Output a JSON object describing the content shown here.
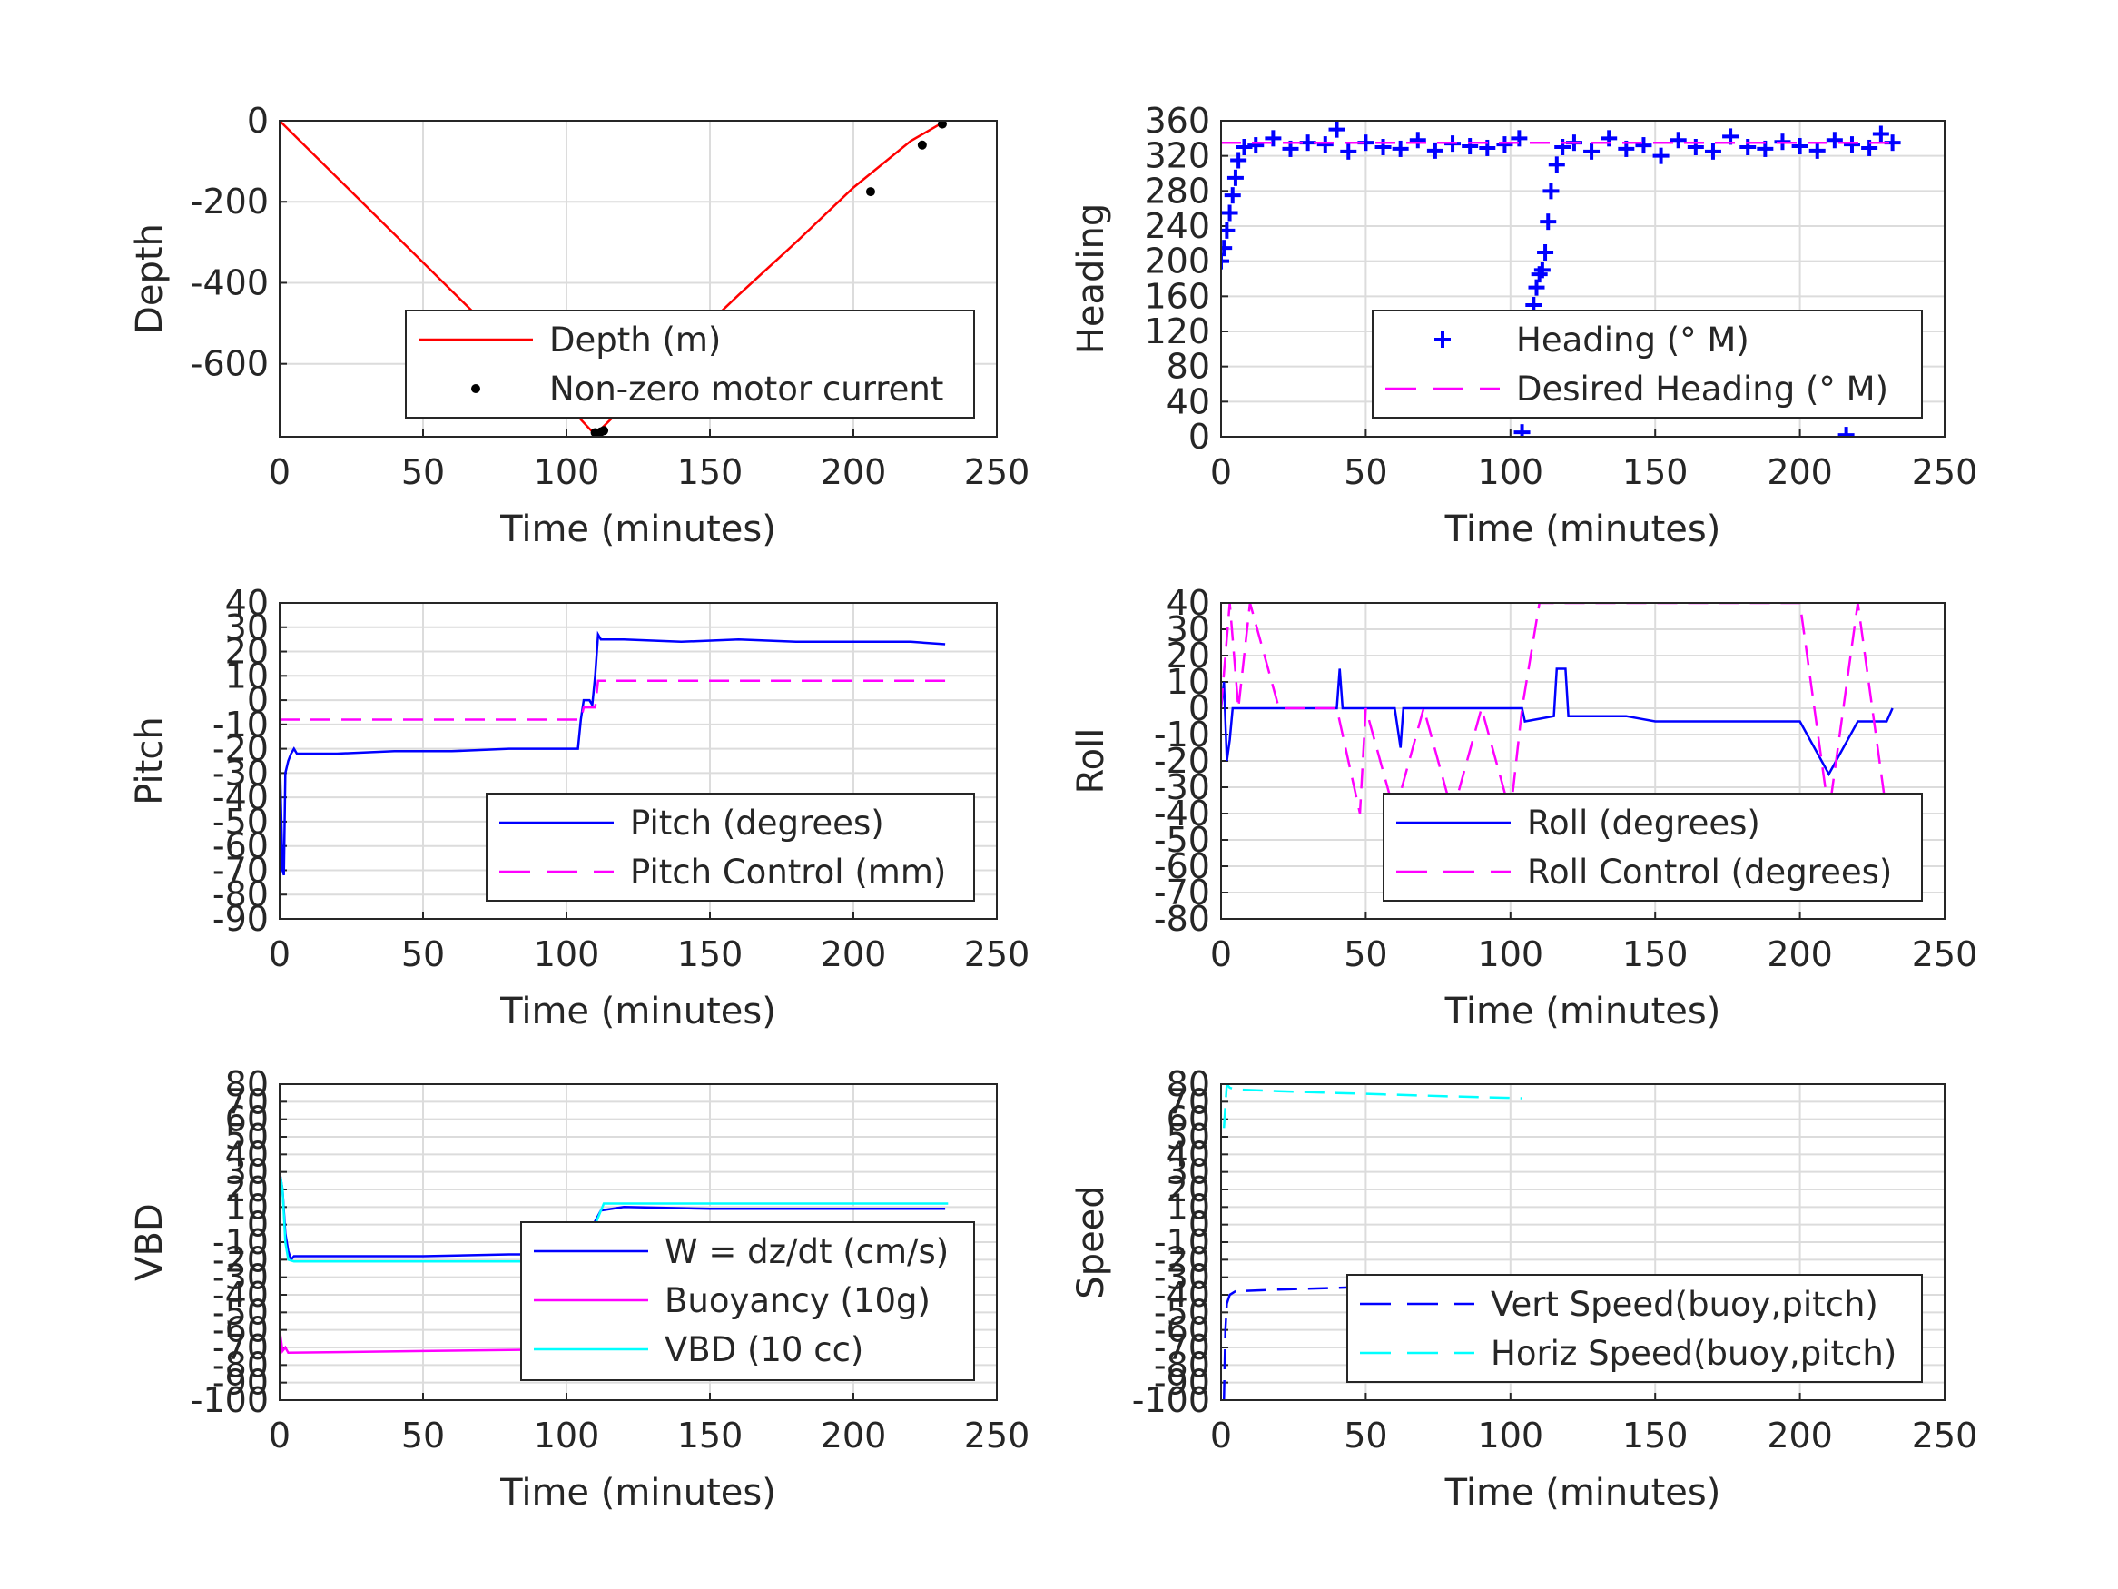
{
  "chart_data": [
    {
      "type": "line",
      "xlabel": "Time (minutes)",
      "ylabel": "Depth",
      "xlim": [
        0,
        250
      ],
      "xticks": [
        0,
        50,
        100,
        150,
        200,
        250
      ],
      "ylim": [
        -780,
        0
      ],
      "yticks": [
        -600,
        -400,
        -200,
        0
      ],
      "grid": true,
      "legend": "bottom-right",
      "series": [
        {
          "name": "Depth (m)",
          "color": "#ff0000",
          "style": "solid",
          "x": [
            0,
            20,
            40,
            60,
            80,
            100,
            110,
            120,
            140,
            160,
            180,
            200,
            220,
            231
          ],
          "y": [
            0,
            -140,
            -280,
            -420,
            -560,
            -700,
            -775,
            -705,
            -565,
            -430,
            -300,
            -165,
            -50,
            -5
          ]
        },
        {
          "name": "Non-zero motor current",
          "color": "#000000",
          "style": "dots",
          "x": [
            110,
            111,
            112,
            113,
            206,
            224,
            231
          ],
          "y": [
            -770,
            -772,
            -768,
            -765,
            -175,
            -60,
            -8
          ]
        }
      ]
    },
    {
      "type": "line",
      "xlabel": "Time (minutes)",
      "ylabel": "Heading",
      "xlim": [
        0,
        250
      ],
      "xticks": [
        0,
        50,
        100,
        150,
        200,
        250
      ],
      "ylim": [
        0,
        360
      ],
      "yticks": [
        0,
        40,
        80,
        120,
        160,
        200,
        240,
        280,
        320,
        360
      ],
      "grid": true,
      "legend": "bottom-right",
      "series": [
        {
          "name": "Heading (° M)",
          "color": "#0000ff",
          "style": "plus",
          "x": [
            0,
            1,
            2,
            3,
            4,
            5,
            6,
            8,
            12,
            18,
            24,
            30,
            36,
            40,
            44,
            50,
            56,
            62,
            68,
            74,
            80,
            86,
            92,
            98,
            103,
            104,
            105,
            106,
            107,
            108,
            109,
            110,
            111,
            112,
            113,
            114,
            116,
            118,
            122,
            128,
            134,
            140,
            146,
            152,
            158,
            164,
            170,
            176,
            182,
            188,
            194,
            200,
            206,
            212,
            218,
            224,
            228,
            232,
            216
          ],
          "y": [
            200,
            215,
            235,
            255,
            275,
            295,
            315,
            330,
            332,
            340,
            328,
            335,
            333,
            350,
            325,
            335,
            330,
            328,
            338,
            326,
            334,
            331,
            329,
            333,
            340,
            5,
            40,
            80,
            120,
            150,
            170,
            185,
            190,
            210,
            245,
            280,
            310,
            330,
            335,
            325,
            340,
            328,
            332,
            320,
            338,
            330,
            325,
            342,
            330,
            328,
            336,
            331,
            326,
            338,
            333,
            329,
            345,
            335,
            2
          ]
        },
        {
          "name": "Desired Heading (° M)",
          "color": "#ff00ff",
          "style": "dashed",
          "x": [
            0,
            233
          ],
          "y": [
            335,
            335
          ]
        }
      ]
    },
    {
      "type": "line",
      "xlabel": "Time (minutes)",
      "ylabel": "Pitch",
      "xlim": [
        0,
        250
      ],
      "xticks": [
        0,
        50,
        100,
        150,
        200,
        250
      ],
      "ylim": [
        -90,
        40
      ],
      "yticks": [
        -90,
        -80,
        -70,
        -60,
        -50,
        -40,
        -30,
        -20,
        -10,
        0,
        10,
        20,
        30,
        40
      ],
      "grid": true,
      "legend": "bottom-right",
      "series": [
        {
          "name": "Pitch (degrees)",
          "color": "#0000ff",
          "style": "solid",
          "x": [
            0,
            1,
            1.5,
            2,
            3,
            4,
            5,
            6,
            10,
            20,
            40,
            60,
            80,
            100,
            104,
            105,
            106,
            108,
            109,
            110,
            111,
            112,
            120,
            140,
            160,
            180,
            200,
            220,
            232
          ],
          "y": [
            -20,
            -70,
            -72,
            -30,
            -25,
            -22,
            -20,
            -22,
            -22,
            -22,
            -21,
            -21,
            -20,
            -20,
            -20,
            -8,
            0,
            0,
            -2,
            10,
            27,
            25,
            25,
            24,
            25,
            24,
            24,
            24,
            23
          ]
        },
        {
          "name": "Pitch Control (mm)",
          "color": "#ff00ff",
          "style": "dashed",
          "x": [
            0,
            105,
            106,
            110,
            111,
            232
          ],
          "y": [
            -8,
            -8,
            -3,
            -3,
            8,
            8
          ]
        }
      ]
    },
    {
      "type": "line",
      "xlabel": "Time (minutes)",
      "ylabel": "Roll",
      "xlim": [
        0,
        250
      ],
      "xticks": [
        0,
        50,
        100,
        150,
        200,
        250
      ],
      "ylim": [
        -80,
        40
      ],
      "yticks": [
        -80,
        -70,
        -60,
        -50,
        -40,
        -30,
        -20,
        -10,
        0,
        10,
        20,
        30,
        40
      ],
      "grid": true,
      "legend": "bottom-right",
      "series": [
        {
          "name": "Roll (degrees)",
          "color": "#0000ff",
          "style": "solid",
          "x": [
            0,
            1,
            2,
            3,
            4,
            5,
            10,
            20,
            40,
            41,
            42,
            43,
            48,
            50,
            60,
            62,
            63,
            64,
            80,
            100,
            104,
            105,
            110,
            115,
            116,
            119,
            120,
            140,
            150,
            200,
            210,
            220,
            230,
            232
          ],
          "y": [
            0,
            10,
            -20,
            -12,
            0,
            0,
            0,
            0,
            0,
            15,
            0,
            0,
            0,
            0,
            0,
            -15,
            0,
            0,
            0,
            0,
            0,
            -5,
            -4,
            -3,
            15,
            15,
            -3,
            -3,
            -5,
            -5,
            -25,
            -5,
            -5,
            0
          ]
        },
        {
          "name": "Roll Control (degrees)",
          "color": "#ff00ff",
          "style": "dashed",
          "x": [
            0,
            3,
            6,
            10,
            20,
            40,
            48,
            50,
            60,
            70,
            80,
            90,
            100,
            104,
            110,
            120,
            140,
            160,
            180,
            200,
            210,
            220,
            230
          ],
          "y": [
            0,
            40,
            0,
            40,
            0,
            0,
            -40,
            0,
            -40,
            0,
            -40,
            0,
            -40,
            0,
            40,
            40,
            40,
            40,
            40,
            40,
            -40,
            40,
            -40
          ]
        }
      ]
    },
    {
      "type": "line",
      "xlabel": "Time (minutes)",
      "ylabel": "VBD",
      "xlim": [
        0,
        250
      ],
      "xticks": [
        0,
        50,
        100,
        150,
        200,
        250
      ],
      "ylim": [
        -100,
        80
      ],
      "yticks": [
        -100,
        -90,
        -80,
        -70,
        -60,
        -50,
        -40,
        -30,
        -20,
        -10,
        0,
        10,
        20,
        30,
        40,
        50,
        60,
        70,
        80
      ],
      "grid": true,
      "legend": "bottom-right",
      "series": [
        {
          "name": "W = dz/dt (cm/s)",
          "color": "#0000ff",
          "style": "solid",
          "x": [
            0,
            1,
            2,
            3,
            4,
            5,
            10,
            20,
            50,
            80,
            103,
            104,
            108,
            110,
            112,
            120,
            150,
            180,
            200,
            220,
            232
          ],
          "y": [
            30,
            20,
            -5,
            -15,
            -20,
            -18,
            -18,
            -18,
            -18,
            -17,
            -17,
            -14,
            -5,
            2,
            8,
            10,
            9,
            9,
            9,
            9,
            9
          ]
        },
        {
          "name": "Buoyancy (10g)",
          "color": "#ff00ff",
          "style": "solid",
          "x": [
            0,
            1,
            2,
            3,
            50,
            103
          ],
          "y": [
            -60,
            -72,
            -70,
            -73,
            -72,
            -71
          ]
        },
        {
          "name": "VBD (10 cc)",
          "color": "#00ffff",
          "style": "solid",
          "x": [
            0,
            1,
            2,
            3,
            5,
            50,
            103,
            104,
            110,
            113,
            150,
            200,
            233
          ],
          "y": [
            30,
            20,
            -10,
            -20,
            -21,
            -21,
            -21,
            -18,
            0,
            12,
            12,
            12,
            12
          ]
        }
      ]
    },
    {
      "type": "line",
      "xlabel": "Time (minutes)",
      "ylabel": "Speed",
      "xlim": [
        0,
        250
      ],
      "xticks": [
        0,
        50,
        100,
        150,
        200,
        250
      ],
      "ylim": [
        -100,
        80
      ],
      "yticks": [
        -100,
        -90,
        -80,
        -70,
        -60,
        -50,
        -40,
        -30,
        -20,
        -10,
        0,
        10,
        20,
        30,
        40,
        50,
        60,
        70,
        80
      ],
      "grid": true,
      "legend": "bottom-right",
      "series": [
        {
          "name": "Vert Speed(buoy,pitch)",
          "color": "#0000ff",
          "style": "dashed",
          "x": [
            1,
            1.5,
            2,
            3,
            5,
            20,
            40,
            60,
            80,
            104
          ],
          "y": [
            -100,
            -60,
            -45,
            -40,
            -38,
            -37,
            -36,
            -35,
            -35,
            -34
          ]
        },
        {
          "name": "Horiz Speed(buoy,pitch)",
          "color": "#00ffff",
          "style": "dashed",
          "x": [
            1,
            2,
            3,
            5,
            20,
            40,
            60,
            80,
            104
          ],
          "y": [
            55,
            80,
            78,
            77,
            76,
            75,
            74,
            73,
            72
          ]
        }
      ]
    }
  ]
}
